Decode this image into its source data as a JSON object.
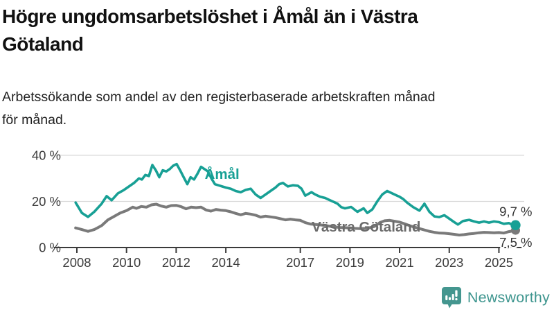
{
  "title": {
    "line1": "Högre ungdomsarbetslöshet i Åmål än i Västra",
    "line2": "Götaland"
  },
  "subtitle": {
    "line1": "Arbetssökande som andel av den registerbaserade arbetskraften månad",
    "line2": "för månad."
  },
  "branding": {
    "name": "Newsworthy",
    "icon": "speech-bubble-bar-chart"
  },
  "colors": {
    "amal": "#18a095",
    "vastra_line": "#7a7a7a",
    "vastra_label": "#6b6b6b",
    "axis": "#3a3a3a",
    "tick_text": "#3d3d3d",
    "grid": "#d9d9d9",
    "value_text": "#333333",
    "brand_teal": "#44968f"
  },
  "chart_data": {
    "type": "line",
    "unit": "%",
    "x_axis": {
      "ticks": [
        {
          "year": 2008,
          "label": "2008"
        },
        {
          "year": 2010,
          "label": "2010"
        },
        {
          "year": 2012,
          "label": "2012"
        },
        {
          "year": 2014,
          "label": "2014"
        },
        {
          "year": 2017,
          "label": "2017"
        },
        {
          "year": 2019,
          "label": "2019"
        },
        {
          "year": 2021,
          "label": "2021"
        },
        {
          "year": 2023,
          "label": "2023"
        },
        {
          "year": 2025,
          "label": "2025"
        }
      ]
    },
    "y_axis": {
      "range": [
        0,
        44
      ],
      "ticks": [
        {
          "value": 0,
          "label": "0 %"
        },
        {
          "value": 20,
          "label": "20 %"
        },
        {
          "value": 40,
          "label": "40 %"
        }
      ]
    },
    "series": [
      {
        "name": "Västra Götaland",
        "slug": "vastra-gotaland",
        "color": "#7a7a7a",
        "label_color": "#6b6b6b",
        "end_label": "7,5 %",
        "end_value": 7.5,
        "end_label_pos": "below",
        "label_anchor": {
          "year": 2017.46,
          "pct": 6.9
        },
        "x": [
          2007.95,
          2008.2,
          2008.45,
          2008.7,
          2009.0,
          2009.25,
          2009.5,
          2009.75,
          2010.0,
          2010.25,
          2010.4,
          2010.6,
          2010.8,
          2011.0,
          2011.2,
          2011.4,
          2011.6,
          2011.8,
          2012.0,
          2012.2,
          2012.4,
          2012.6,
          2012.8,
          2013.0,
          2013.2,
          2013.4,
          2013.6,
          2013.8,
          2014.0,
          2014.2,
          2014.4,
          2014.6,
          2014.8,
          2015.0,
          2015.2,
          2015.4,
          2015.6,
          2015.8,
          2016.0,
          2016.2,
          2016.4,
          2016.6,
          2016.8,
          2017.0,
          2017.2,
          2017.4,
          2017.6,
          2017.8,
          2018.0,
          2018.2,
          2018.4,
          2018.6,
          2018.8,
          2019.0,
          2019.2,
          2019.4,
          2019.6,
          2019.8,
          2020.0,
          2020.2,
          2020.4,
          2020.6,
          2020.8,
          2021.0,
          2021.2,
          2021.4,
          2021.6,
          2021.8,
          2022.0,
          2022.2,
          2022.4,
          2022.6,
          2022.8,
          2023.0,
          2023.2,
          2023.4,
          2023.6,
          2023.8,
          2024.0,
          2024.2,
          2024.4,
          2024.6,
          2024.8,
          2025.0,
          2025.2,
          2025.4,
          2025.55,
          2025.67
        ],
        "y": [
          8.5,
          7.8,
          7.0,
          7.8,
          9.5,
          12.0,
          13.5,
          15.0,
          16.0,
          17.5,
          17.0,
          17.8,
          17.5,
          18.5,
          18.8,
          18.0,
          17.5,
          18.2,
          18.3,
          17.7,
          16.8,
          17.5,
          17.3,
          17.5,
          16.3,
          15.8,
          16.5,
          16.2,
          16.0,
          15.5,
          14.8,
          14.2,
          14.8,
          14.5,
          14.0,
          13.2,
          13.6,
          13.3,
          13.0,
          12.5,
          12.0,
          12.3,
          12.0,
          11.8,
          10.8,
          10.2,
          10.0,
          9.8,
          9.6,
          9.2,
          8.9,
          8.7,
          8.6,
          8.5,
          8.3,
          8.2,
          8.3,
          8.6,
          9.2,
          10.8,
          11.6,
          11.8,
          11.4,
          11.0,
          10.3,
          9.5,
          8.8,
          8.2,
          7.6,
          7.0,
          6.6,
          6.3,
          6.2,
          6.0,
          5.7,
          5.4,
          5.6,
          5.9,
          6.1,
          6.4,
          6.6,
          6.5,
          6.4,
          6.5,
          6.3,
          6.9,
          7.2,
          7.5
        ]
      },
      {
        "name": "Åmål",
        "slug": "amal",
        "color": "#18a095",
        "label_color": "#18a095",
        "end_label": "9,7 %",
        "end_value": 9.7,
        "end_label_pos": "above",
        "label_anchor": {
          "year": 2013.15,
          "pct": 29.8
        },
        "x": [
          2007.95,
          2008.2,
          2008.45,
          2008.7,
          2009.0,
          2009.2,
          2009.4,
          2009.65,
          2009.9,
          2010.1,
          2010.3,
          2010.5,
          2010.62,
          2010.76,
          2010.9,
          2011.04,
          2011.18,
          2011.32,
          2011.46,
          2011.6,
          2011.74,
          2011.88,
          2012.02,
          2012.16,
          2012.3,
          2012.45,
          2012.58,
          2012.72,
          2012.86,
          2013.0,
          2013.14,
          2013.28,
          2013.42,
          2013.56,
          2013.7,
          2013.85,
          2014.0,
          2014.2,
          2014.4,
          2014.6,
          2014.8,
          2015.0,
          2015.2,
          2015.4,
          2015.6,
          2015.8,
          2016.0,
          2016.15,
          2016.3,
          2016.5,
          2016.7,
          2016.9,
          2017.05,
          2017.2,
          2017.45,
          2017.6,
          2017.8,
          2018.0,
          2018.1,
          2018.3,
          2018.5,
          2018.65,
          2018.8,
          2019.05,
          2019.3,
          2019.55,
          2019.7,
          2019.9,
          2020.1,
          2020.3,
          2020.5,
          2020.7,
          2020.9,
          2021.0,
          2021.15,
          2021.3,
          2021.55,
          2021.8,
          2022.0,
          2022.2,
          2022.4,
          2022.6,
          2022.8,
          2023.0,
          2023.2,
          2023.35,
          2023.55,
          2023.8,
          2024.0,
          2024.2,
          2024.4,
          2024.6,
          2024.8,
          2025.0,
          2025.2,
          2025.4,
          2025.55,
          2025.67
        ],
        "y": [
          19.5,
          15.0,
          13.3,
          15.5,
          19.0,
          22.3,
          20.5,
          23.5,
          25.0,
          26.5,
          28.0,
          30.0,
          29.5,
          31.5,
          31.0,
          35.8,
          33.5,
          30.5,
          33.5,
          33.0,
          34.0,
          35.5,
          36.2,
          33.5,
          30.5,
          27.5,
          30.5,
          29.5,
          32.0,
          35.0,
          34.0,
          33.0,
          30.0,
          27.5,
          27.0,
          26.5,
          26.0,
          25.5,
          24.5,
          24.0,
          25.0,
          25.5,
          23.0,
          21.5,
          23.0,
          24.5,
          26.0,
          27.5,
          28.0,
          26.5,
          27.0,
          26.8,
          25.5,
          22.5,
          24.0,
          23.0,
          22.0,
          21.5,
          21.0,
          20.0,
          19.0,
          17.5,
          17.0,
          17.6,
          15.5,
          17.0,
          15.0,
          16.5,
          20.0,
          23.0,
          24.5,
          23.5,
          22.5,
          22.0,
          21.0,
          19.5,
          17.5,
          16.0,
          19.0,
          15.5,
          13.5,
          13.2,
          14.0,
          12.5,
          11.0,
          10.0,
          11.5,
          12.0,
          11.3,
          10.8,
          11.3,
          10.8,
          11.3,
          11.0,
          10.3,
          10.6,
          9.9,
          9.7
        ]
      }
    ]
  }
}
